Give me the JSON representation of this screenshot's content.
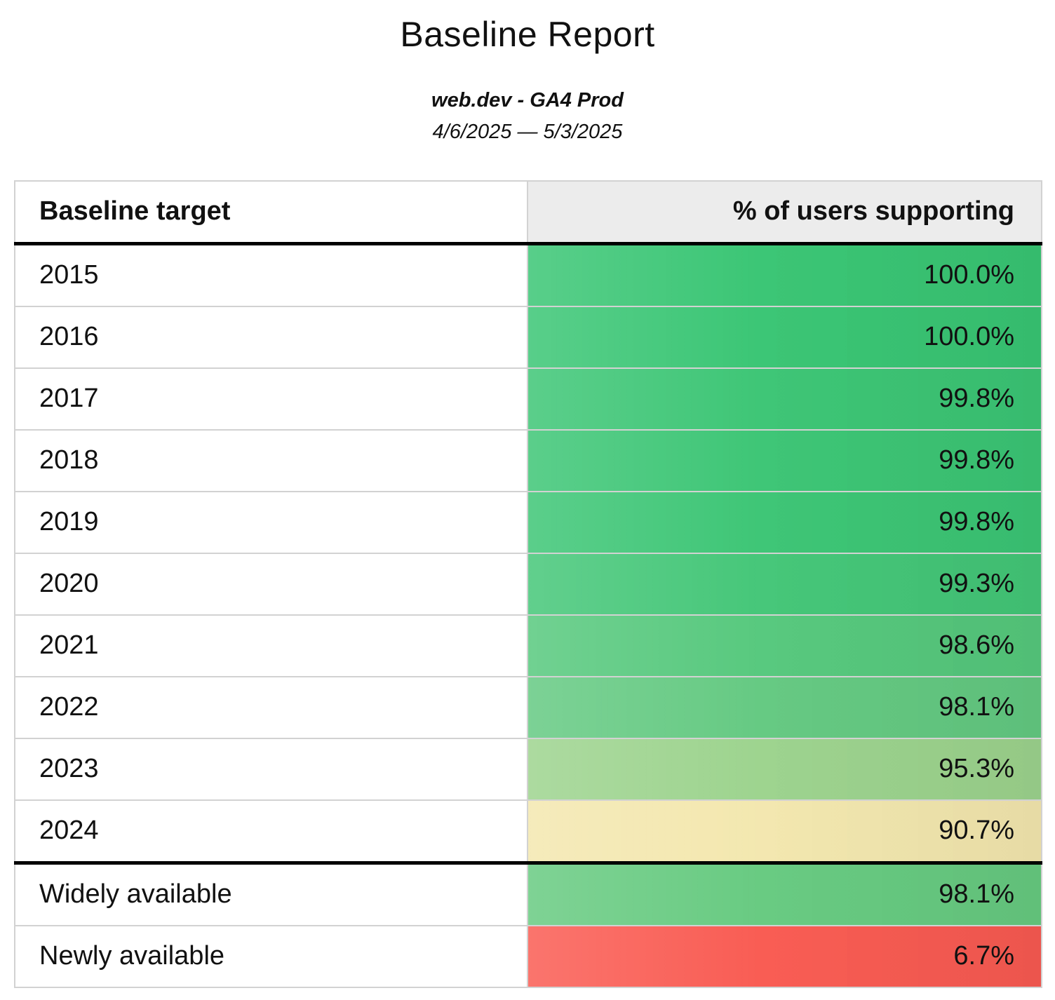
{
  "report": {
    "title": "Baseline Report",
    "source": "web.dev - GA4 Prod",
    "date_range": "4/6/2025 — 5/3/2025"
  },
  "table": {
    "columns": {
      "target": "Baseline target",
      "value": "% of users supporting"
    },
    "rows": [
      {
        "label": "2015",
        "value": "100.0%",
        "color": "#38c573",
        "separator_above": false
      },
      {
        "label": "2016",
        "value": "100.0%",
        "color": "#38c573",
        "separator_above": false
      },
      {
        "label": "2017",
        "value": "99.8%",
        "color": "#3bc574",
        "separator_above": false
      },
      {
        "label": "2018",
        "value": "99.8%",
        "color": "#3bc574",
        "separator_above": false
      },
      {
        "label": "2019",
        "value": "99.8%",
        "color": "#3bc574",
        "separator_above": false
      },
      {
        "label": "2020",
        "value": "99.3%",
        "color": "#43c677",
        "separator_above": false
      },
      {
        "label": "2021",
        "value": "98.6%",
        "color": "#55c87c",
        "separator_above": false
      },
      {
        "label": "2022",
        "value": "98.1%",
        "color": "#63c981",
        "separator_above": false
      },
      {
        "label": "2023",
        "value": "95.3%",
        "color": "#9cd38d",
        "separator_above": false
      },
      {
        "label": "2024",
        "value": "90.7%",
        "color": "#f3e7ae",
        "separator_above": false
      },
      {
        "label": "Widely available",
        "value": "98.1%",
        "color": "#66ca80",
        "separator_above": true
      },
      {
        "label": "Newly available",
        "value": "6.7%",
        "color": "#f95a51",
        "separator_above": false
      }
    ]
  },
  "chart_data": {
    "type": "table",
    "title": "Baseline Report",
    "subtitle": "web.dev - GA4 Prod",
    "date_range": "4/6/2025 — 5/3/2025",
    "columns": [
      "Baseline target",
      "% of users supporting"
    ],
    "categories": [
      "2015",
      "2016",
      "2017",
      "2018",
      "2019",
      "2020",
      "2021",
      "2022",
      "2023",
      "2024",
      "Widely available",
      "Newly available"
    ],
    "values": [
      100.0,
      100.0,
      99.8,
      99.8,
      99.8,
      99.3,
      98.6,
      98.1,
      95.3,
      90.7,
      98.1,
      6.7
    ],
    "value_unit": "percent",
    "cell_colors": [
      "#38c573",
      "#38c573",
      "#3bc574",
      "#3bc574",
      "#3bc574",
      "#43c677",
      "#55c87c",
      "#63c981",
      "#9cd38d",
      "#f3e7ae",
      "#66ca80",
      "#f95a51"
    ],
    "color_scale": "green-yellow-red conditional formatting on % of users supporting",
    "header_background": "#ececec",
    "layout_hints": {
      "value_column_align": "right",
      "thick_black_rule_below_header": true,
      "thick_black_rule_above_row": "Widely available"
    }
  }
}
